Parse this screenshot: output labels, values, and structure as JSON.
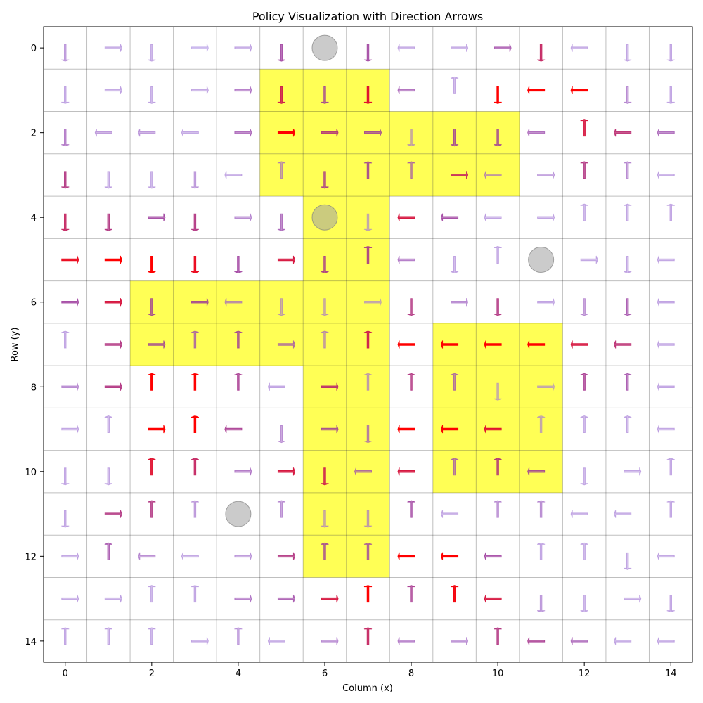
{
  "chart_data": {
    "type": "grid-policy",
    "title": "Policy Visualization with Direction Arrows",
    "xlabel": "Column (x)",
    "ylabel": "Row (y)",
    "xlim": [
      -0.5,
      14.5
    ],
    "ylim": [
      14.5,
      -0.5
    ],
    "x_ticks": [
      0,
      2,
      4,
      6,
      8,
      10,
      12,
      14
    ],
    "y_ticks": [
      0,
      2,
      4,
      6,
      8,
      10,
      12,
      14
    ],
    "grid": true,
    "highlight_color": "#ffff55",
    "obstacle_color": "#c8c8c8",
    "highlighted_cells": [
      [
        5,
        1
      ],
      [
        6,
        1
      ],
      [
        7,
        1
      ],
      [
        5,
        2
      ],
      [
        6,
        2
      ],
      [
        7,
        2
      ],
      [
        8,
        2
      ],
      [
        9,
        2
      ],
      [
        10,
        2
      ],
      [
        5,
        3
      ],
      [
        6,
        3
      ],
      [
        7,
        3
      ],
      [
        8,
        3
      ],
      [
        9,
        3
      ],
      [
        10,
        3
      ],
      [
        6,
        4
      ],
      [
        7,
        4
      ],
      [
        6,
        5
      ],
      [
        7,
        5
      ],
      [
        2,
        6
      ],
      [
        3,
        6
      ],
      [
        4,
        6
      ],
      [
        5,
        6
      ],
      [
        6,
        6
      ],
      [
        7,
        6
      ],
      [
        2,
        7
      ],
      [
        3,
        7
      ],
      [
        4,
        7
      ],
      [
        5,
        7
      ],
      [
        6,
        7
      ],
      [
        7,
        7
      ],
      [
        9,
        7
      ],
      [
        10,
        7
      ],
      [
        11,
        7
      ],
      [
        6,
        8
      ],
      [
        7,
        8
      ],
      [
        9,
        8
      ],
      [
        10,
        8
      ],
      [
        11,
        8
      ],
      [
        6,
        9
      ],
      [
        7,
        9
      ],
      [
        9,
        9
      ],
      [
        10,
        9
      ],
      [
        11,
        9
      ],
      [
        6,
        10
      ],
      [
        7,
        10
      ],
      [
        9,
        10
      ],
      [
        10,
        10
      ],
      [
        11,
        10
      ],
      [
        6,
        11
      ],
      [
        7,
        11
      ],
      [
        6,
        12
      ],
      [
        7,
        12
      ]
    ],
    "obstacles": [
      [
        6,
        0
      ],
      [
        6,
        4
      ],
      [
        11,
        5
      ],
      [
        4,
        11
      ]
    ],
    "arrow_color_scale": {
      "low": "#aaaaff",
      "mid": "#993399",
      "high": "#ff0000"
    },
    "arrow_rows": [
      "D0.25 R0.2 D0.2 R0.15 R0.2 D0.5 _ D0.5 L0.2 R0.2 R0.45 D0.7 L0.2 D0.2 D0.2",
      "D0.2 R0.2 D0.2 R0.2 R0.35 D0.75 D0.5 D0.85 L0.4 U0.2 D1.0 L1.0 L1.0 D0.3 D0.2",
      "D0.35 L0.25 L0.25 L0.2 R0.4 R1.0 R0.6 R0.5 D0.25 D0.5 D0.5 L0.4 U0.8 L0.65 L0.4",
      "D0.6 D0.2 D0.2 D0.25 L0.2 U0.3 D0.55 U0.5 U0.4 R0.7 L0.3 R0.25 U0.6 U0.3 L0.2",
      "D0.7 D0.6 R0.5 D0.6 R0.3 D0.4 _ D0.2 L0.8 L0.5 L0.2 R0.2 U0.2 U0.2 U0.2",
      "R0.9 R1.0 D1.0 D0.9 D0.5 R0.8 D0.55 U0.55 L0.35 D0.2 U0.2 _ R0.2 D0.2 L0.2",
      "R0.5 R0.8 D0.5 R0.5 L0.3 D0.25 D0.25 R0.2 D0.6 R0.3 D0.6 R0.2 D0.3 D0.45 L0.2",
      "U0.2 R0.6 R0.5 U0.4 U0.5 R0.4 U0.3 U0.75 L1.0 L1.0 L1.0 L1.0 L0.8 L0.65 L0.2",
      "R0.3 R0.6 U1.0 U1.0 U0.55 L0.2 R0.65 U0.25 U0.6 U0.4 D0.2 R0.2 U0.55 U0.45 L0.2",
      "R0.2 U0.2 R1.0 U1.0 L0.55 D0.3 R0.5 D0.35 L1.0 L1.0 L0.85 U0.2 U0.2 U0.2 L0.2",
      "D0.2 D0.2 U0.85 U0.7 R0.35 R0.8 D0.75 L0.4 L0.8 U0.4 U0.6 L0.5 D0.2 R0.2 U0.2",
      "D0.2 R0.6 U0.6 U0.25 _ U0.3 D0.25 D0.25 U0.5 L0.2 U0.3 U0.3 L0.2 L0.2 U0.2",
      "R0.2 U0.45 L0.3 L0.2 R0.25 R0.6 U0.5 U0.45 L1.0 L1.0 L0.5 U0.2 U0.2 D0.2 L0.2",
      "R0.2 R0.2 U0.2 U0.2 R0.35 R0.45 R0.8 U1.0 U0.55 U0.95 L0.8 D0.25 D0.2 R0.2 D0.2",
      "U0.2 U0.2 U0.2 R0.2 U0.25 L0.2 R0.3 U0.7 L0.35 R0.3 U0.6 L0.55 L0.4 L0.2 L0.2"
    ]
  }
}
